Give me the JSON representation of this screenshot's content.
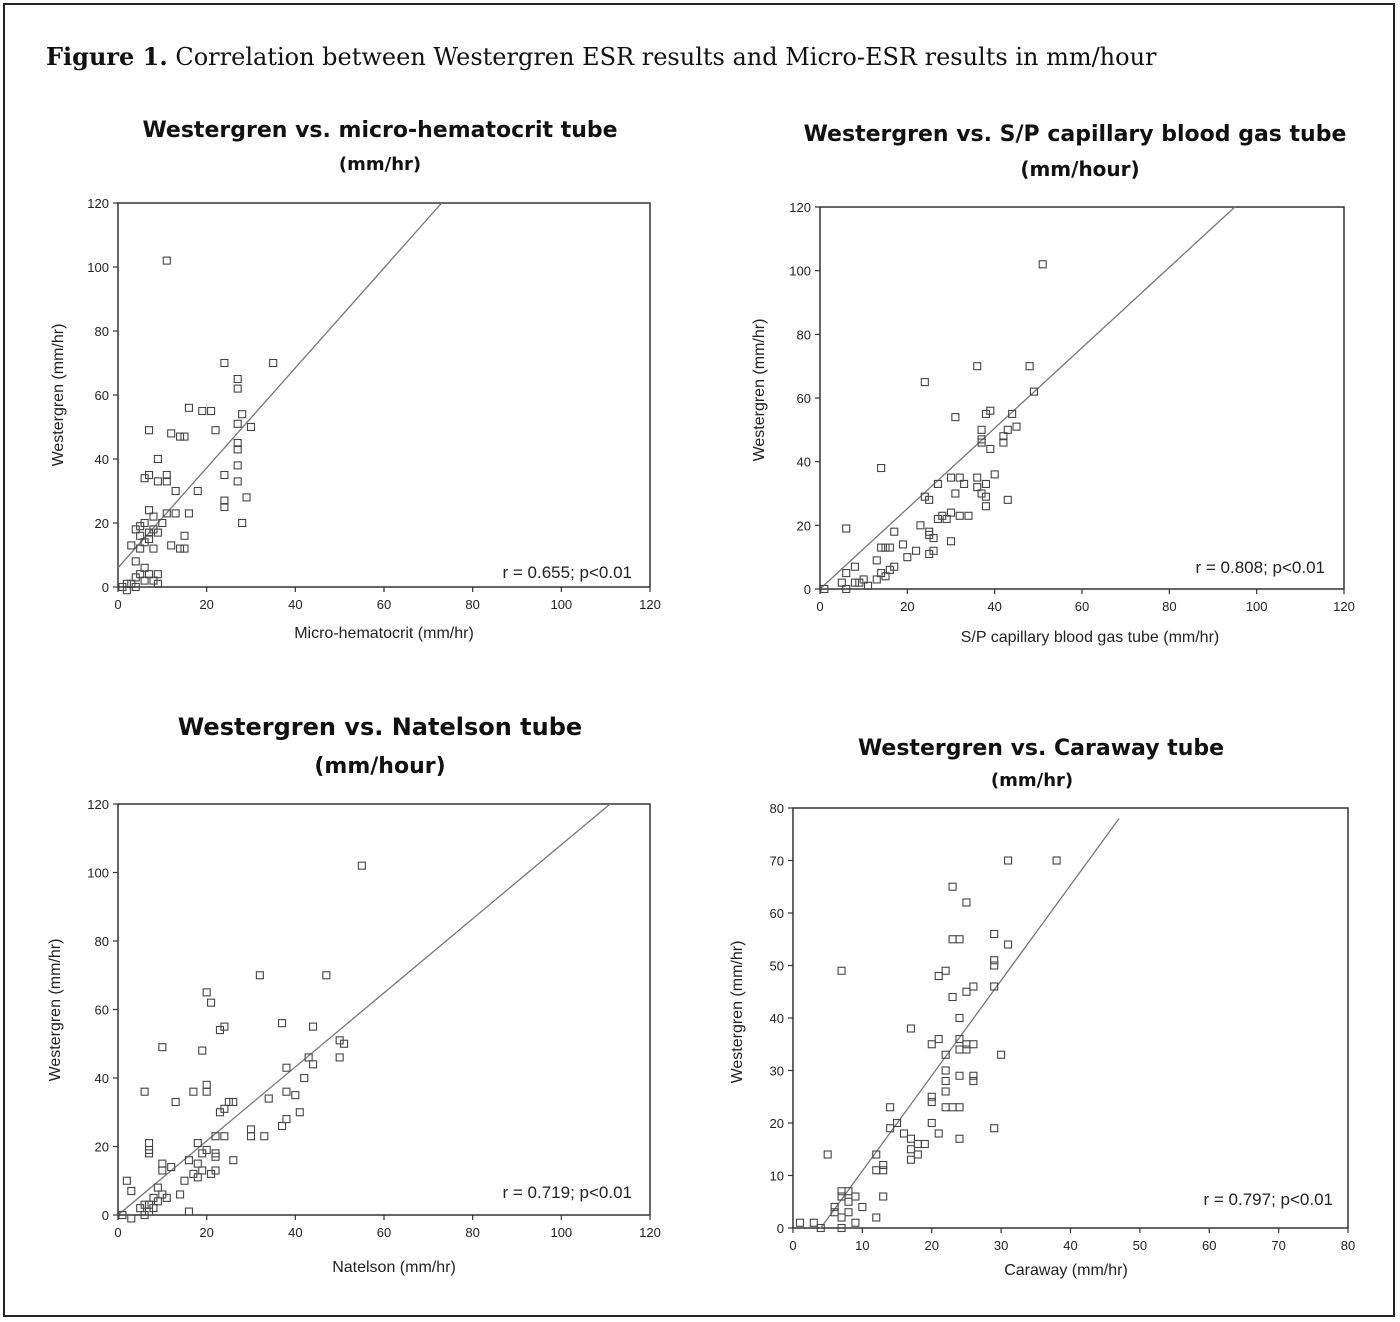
{
  "figure": {
    "label": "Figure 1.",
    "text": "Correlation between Westergren ESR results and Micro-ESR results in mm/hour"
  },
  "chart_data": [
    {
      "type": "scatter",
      "title": "Westergren vs. micro-hematocrit tube",
      "subtitle": "(mm/hr)",
      "xlabel": "Micro-hematocrit  (mm/hr)",
      "ylabel": "Westergren  (mm/hr)",
      "xlim": [
        0,
        120
      ],
      "ylim": [
        0,
        120
      ],
      "xticks": [
        0,
        20,
        40,
        60,
        80,
        100,
        120
      ],
      "yticks": [
        0,
        20,
        40,
        60,
        80,
        100,
        120
      ],
      "annotation": "r = 0.655; p<0.01",
      "fit_line": {
        "x": [
          0,
          73
        ],
        "y": [
          6,
          120
        ]
      },
      "points": [
        [
          11,
          102
        ],
        [
          24,
          70
        ],
        [
          35,
          70
        ],
        [
          27,
          65
        ],
        [
          27,
          62
        ],
        [
          16,
          56
        ],
        [
          19,
          55
        ],
        [
          21,
          55
        ],
        [
          28,
          54
        ],
        [
          27,
          51
        ],
        [
          30,
          50
        ],
        [
          7,
          49
        ],
        [
          22,
          49
        ],
        [
          12,
          48
        ],
        [
          14,
          47
        ],
        [
          15,
          47
        ],
        [
          27,
          45
        ],
        [
          27,
          43
        ],
        [
          9,
          40
        ],
        [
          7,
          35
        ],
        [
          11,
          35
        ],
        [
          6,
          34
        ],
        [
          9,
          33
        ],
        [
          11,
          33
        ],
        [
          24,
          35
        ],
        [
          27,
          33
        ],
        [
          13,
          30
        ],
        [
          18,
          30
        ],
        [
          27,
          38
        ],
        [
          29,
          28
        ],
        [
          24,
          27
        ],
        [
          24,
          25
        ],
        [
          7,
          24
        ],
        [
          11,
          23
        ],
        [
          13,
          23
        ],
        [
          16,
          23
        ],
        [
          8,
          22
        ],
        [
          6,
          20
        ],
        [
          10,
          20
        ],
        [
          28,
          20
        ],
        [
          5,
          19
        ],
        [
          8,
          18
        ],
        [
          4,
          18
        ],
        [
          7,
          17
        ],
        [
          9,
          17
        ],
        [
          5,
          16
        ],
        [
          7,
          15
        ],
        [
          6,
          14
        ],
        [
          15,
          16
        ],
        [
          14,
          12
        ],
        [
          12,
          13
        ],
        [
          15,
          12
        ],
        [
          3,
          13
        ],
        [
          5,
          12
        ],
        [
          8,
          12
        ],
        [
          4,
          8
        ],
        [
          6,
          6
        ],
        [
          7,
          4
        ],
        [
          9,
          4
        ],
        [
          5,
          4
        ],
        [
          4,
          3
        ],
        [
          6,
          2
        ],
        [
          8,
          2
        ],
        [
          9,
          1
        ],
        [
          3,
          1
        ],
        [
          2,
          1
        ],
        [
          4,
          0
        ],
        [
          1,
          0
        ],
        [
          2,
          -1
        ]
      ]
    },
    {
      "type": "scatter",
      "title": "Westergren vs. S/P capillary blood gas tube",
      "subtitle": "(mm/hour)",
      "xlabel": "S/P capillary blood gas tube (mm/hr)",
      "ylabel": "Westergren  (mm/hr)",
      "xlim": [
        0,
        120
      ],
      "ylim": [
        0,
        120
      ],
      "xticks": [
        0,
        20,
        40,
        60,
        80,
        100,
        120
      ],
      "yticks": [
        0,
        20,
        40,
        60,
        80,
        100,
        120
      ],
      "annotation": "r = 0.808; p<0.01",
      "fit_line": {
        "x": [
          0,
          95
        ],
        "y": [
          0,
          120
        ]
      },
      "points": [
        [
          51,
          102
        ],
        [
          36,
          70
        ],
        [
          48,
          70
        ],
        [
          24,
          65
        ],
        [
          49,
          62
        ],
        [
          39,
          56
        ],
        [
          38,
          55
        ],
        [
          44,
          55
        ],
        [
          31,
          54
        ],
        [
          45,
          51
        ],
        [
          43,
          50
        ],
        [
          42,
          48
        ],
        [
          37,
          50
        ],
        [
          37,
          47
        ],
        [
          37,
          46
        ],
        [
          42,
          46
        ],
        [
          39,
          44
        ],
        [
          14,
          38
        ],
        [
          40,
          36
        ],
        [
          30,
          35
        ],
        [
          32,
          35
        ],
        [
          36,
          35
        ],
        [
          33,
          33
        ],
        [
          27,
          33
        ],
        [
          38,
          33
        ],
        [
          36,
          32
        ],
        [
          37,
          30
        ],
        [
          31,
          30
        ],
        [
          24,
          29
        ],
        [
          38,
          29
        ],
        [
          43,
          28
        ],
        [
          25,
          28
        ],
        [
          38,
          26
        ],
        [
          32,
          23
        ],
        [
          30,
          24
        ],
        [
          28,
          23
        ],
        [
          34,
          23
        ],
        [
          29,
          22
        ],
        [
          27,
          22
        ],
        [
          23,
          20
        ],
        [
          6,
          19
        ],
        [
          17,
          18
        ],
        [
          25,
          18
        ],
        [
          25,
          17
        ],
        [
          26,
          16
        ],
        [
          30,
          15
        ],
        [
          19,
          14
        ],
        [
          14,
          13
        ],
        [
          15,
          13
        ],
        [
          16,
          13
        ],
        [
          26,
          12
        ],
        [
          22,
          12
        ],
        [
          25,
          11
        ],
        [
          20,
          10
        ],
        [
          13,
          9
        ],
        [
          8,
          7
        ],
        [
          17,
          7
        ],
        [
          16,
          6
        ],
        [
          14,
          5
        ],
        [
          6,
          5
        ],
        [
          15,
          4
        ],
        [
          10,
          3
        ],
        [
          13,
          3
        ],
        [
          9,
          2
        ],
        [
          8,
          2
        ],
        [
          11,
          1
        ],
        [
          5,
          2
        ],
        [
          1,
          0
        ],
        [
          6,
          0
        ]
      ]
    },
    {
      "type": "scatter",
      "title": "Westergren vs. Natelson  tube",
      "subtitle": "(mm/hour)",
      "xlabel": "Natelson  (mm/hr)",
      "ylabel": "Westergren  (mm/hr)",
      "xlim": [
        0,
        120
      ],
      "ylim": [
        0,
        120
      ],
      "xticks": [
        0,
        20,
        40,
        60,
        80,
        100,
        120
      ],
      "yticks": [
        0,
        20,
        40,
        60,
        80,
        100,
        120
      ],
      "annotation": "r = 0.719; p<0.01",
      "fit_line": {
        "x": [
          0,
          111
        ],
        "y": [
          0,
          120
        ]
      },
      "points": [
        [
          55,
          102
        ],
        [
          32,
          70
        ],
        [
          47,
          70
        ],
        [
          20,
          65
        ],
        [
          21,
          62
        ],
        [
          37,
          56
        ],
        [
          24,
          55
        ],
        [
          23,
          54
        ],
        [
          44,
          55
        ],
        [
          50,
          51
        ],
        [
          51,
          50
        ],
        [
          10,
          49
        ],
        [
          19,
          48
        ],
        [
          43,
          46
        ],
        [
          50,
          46
        ],
        [
          44,
          44
        ],
        [
          38,
          43
        ],
        [
          17,
          36
        ],
        [
          20,
          38
        ],
        [
          20,
          36
        ],
        [
          42,
          40
        ],
        [
          38,
          36
        ],
        [
          40,
          35
        ],
        [
          6,
          36
        ],
        [
          25,
          33
        ],
        [
          26,
          33
        ],
        [
          34,
          34
        ],
        [
          13,
          33
        ],
        [
          24,
          31
        ],
        [
          41,
          30
        ],
        [
          23,
          30
        ],
        [
          38,
          28
        ],
        [
          30,
          25
        ],
        [
          37,
          26
        ],
        [
          30,
          23
        ],
        [
          24,
          23
        ],
        [
          22,
          23
        ],
        [
          33,
          23
        ],
        [
          18,
          21
        ],
        [
          7,
          21
        ],
        [
          7,
          19
        ],
        [
          7,
          18
        ],
        [
          20,
          19
        ],
        [
          22,
          18
        ],
        [
          19,
          18
        ],
        [
          22,
          17
        ],
        [
          16,
          16
        ],
        [
          26,
          16
        ],
        [
          18,
          15
        ],
        [
          10,
          15
        ],
        [
          12,
          14
        ],
        [
          10,
          13
        ],
        [
          19,
          13
        ],
        [
          22,
          13
        ],
        [
          17,
          12
        ],
        [
          21,
          12
        ],
        [
          18,
          11
        ],
        [
          15,
          10
        ],
        [
          2,
          10
        ],
        [
          9,
          8
        ],
        [
          3,
          7
        ],
        [
          14,
          6
        ],
        [
          10,
          6
        ],
        [
          11,
          5
        ],
        [
          8,
          5
        ],
        [
          9,
          4
        ],
        [
          7,
          3
        ],
        [
          6,
          3
        ],
        [
          8,
          2
        ],
        [
          5,
          2
        ],
        [
          16,
          1
        ],
        [
          7,
          1
        ],
        [
          6,
          0
        ],
        [
          1,
          0
        ],
        [
          3,
          -1
        ]
      ]
    },
    {
      "type": "scatter",
      "title": "Westergren vs. Caraway  tube",
      "subtitle": "(mm/hr)",
      "xlabel": "Caraway (mm/hr)",
      "ylabel": "Westergren  (mm/hr)",
      "xlim": [
        0,
        80
      ],
      "ylim": [
        0,
        80
      ],
      "xticks": [
        0,
        10,
        20,
        30,
        40,
        50,
        60,
        70,
        80
      ],
      "yticks": [
        0,
        10,
        20,
        30,
        40,
        50,
        60,
        70,
        80
      ],
      "annotation": "r = 0.797; p<0.01",
      "fit_line": {
        "x": [
          4,
          47
        ],
        "y": [
          0,
          78
        ]
      },
      "points": [
        [
          38,
          70
        ],
        [
          31,
          70
        ],
        [
          23,
          65
        ],
        [
          25,
          62
        ],
        [
          29,
          56
        ],
        [
          23,
          55
        ],
        [
          24,
          55
        ],
        [
          31,
          54
        ],
        [
          29,
          51
        ],
        [
          29,
          50
        ],
        [
          7,
          49
        ],
        [
          22,
          49
        ],
        [
          21,
          48
        ],
        [
          26,
          46
        ],
        [
          29,
          46
        ],
        [
          25,
          45
        ],
        [
          23,
          44
        ],
        [
          24,
          40
        ],
        [
          17,
          38
        ],
        [
          21,
          36
        ],
        [
          24,
          36
        ],
        [
          25,
          35
        ],
        [
          20,
          35
        ],
        [
          26,
          35
        ],
        [
          24,
          34
        ],
        [
          25,
          34
        ],
        [
          22,
          33
        ],
        [
          30,
          33
        ],
        [
          22,
          30
        ],
        [
          26,
          29
        ],
        [
          24,
          29
        ],
        [
          26,
          28
        ],
        [
          22,
          28
        ],
        [
          22,
          26
        ],
        [
          22,
          23
        ],
        [
          23,
          23
        ],
        [
          24,
          23
        ],
        [
          14,
          23
        ],
        [
          20,
          25
        ],
        [
          20,
          24
        ],
        [
          20,
          20
        ],
        [
          14,
          19
        ],
        [
          15,
          20
        ],
        [
          29,
          19
        ],
        [
          16,
          18
        ],
        [
          21,
          18
        ],
        [
          24,
          17
        ],
        [
          17,
          17
        ],
        [
          18,
          16
        ],
        [
          19,
          16
        ],
        [
          17,
          15
        ],
        [
          18,
          14
        ],
        [
          12,
          14
        ],
        [
          5,
          14
        ],
        [
          17,
          13
        ],
        [
          13,
          12
        ],
        [
          13,
          11
        ],
        [
          12,
          11
        ],
        [
          7,
          7
        ],
        [
          8,
          7
        ],
        [
          7,
          6
        ],
        [
          9,
          6
        ],
        [
          8,
          5
        ],
        [
          10,
          4
        ],
        [
          6,
          4
        ],
        [
          8,
          3
        ],
        [
          13,
          6
        ],
        [
          12,
          2
        ],
        [
          6,
          3
        ],
        [
          7,
          2
        ],
        [
          1,
          1
        ],
        [
          3,
          1
        ],
        [
          4,
          0
        ],
        [
          7,
          0
        ],
        [
          9,
          1
        ]
      ]
    }
  ]
}
